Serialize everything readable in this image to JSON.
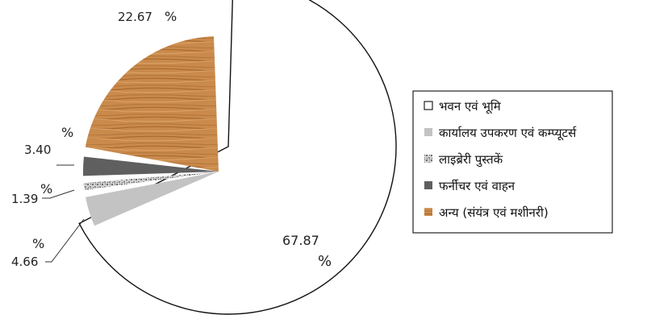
{
  "chart_data": {
    "type": "pie",
    "exploded": true,
    "title": "",
    "series": [
      {
        "name": "",
        "slices": [
          {
            "label": "भवन एवं भूमि",
            "value": 67.87,
            "value_label": "67.87",
            "unit": "%",
            "color": "#ffffff",
            "pattern": "none"
          },
          {
            "label": "कार्यालय उपकरण एवं कम्प्यूटर्स",
            "value": 4.66,
            "value_label": "4.66",
            "unit": "%",
            "color": "#c3c3c3",
            "pattern": "none"
          },
          {
            "label": "लाइब्रेरी पुस्तकें",
            "value": 1.39,
            "value_label": "1.39",
            "unit": "%",
            "color": "#a8a8a8",
            "pattern": "speckle"
          },
          {
            "label": "फर्नीचर एवं वाहन",
            "value": 3.4,
            "value_label": "3.40",
            "unit": "%",
            "color": "#5f5f5f",
            "pattern": "none"
          },
          {
            "label": "अन्य (संयंत्र एवं मशीनरी)",
            "value": 22.67,
            "value_label": "22.67",
            "unit": "%",
            "color": "#c98a4b",
            "pattern": "wood-grain"
          }
        ]
      }
    ],
    "legend": {
      "placement": "right"
    }
  }
}
